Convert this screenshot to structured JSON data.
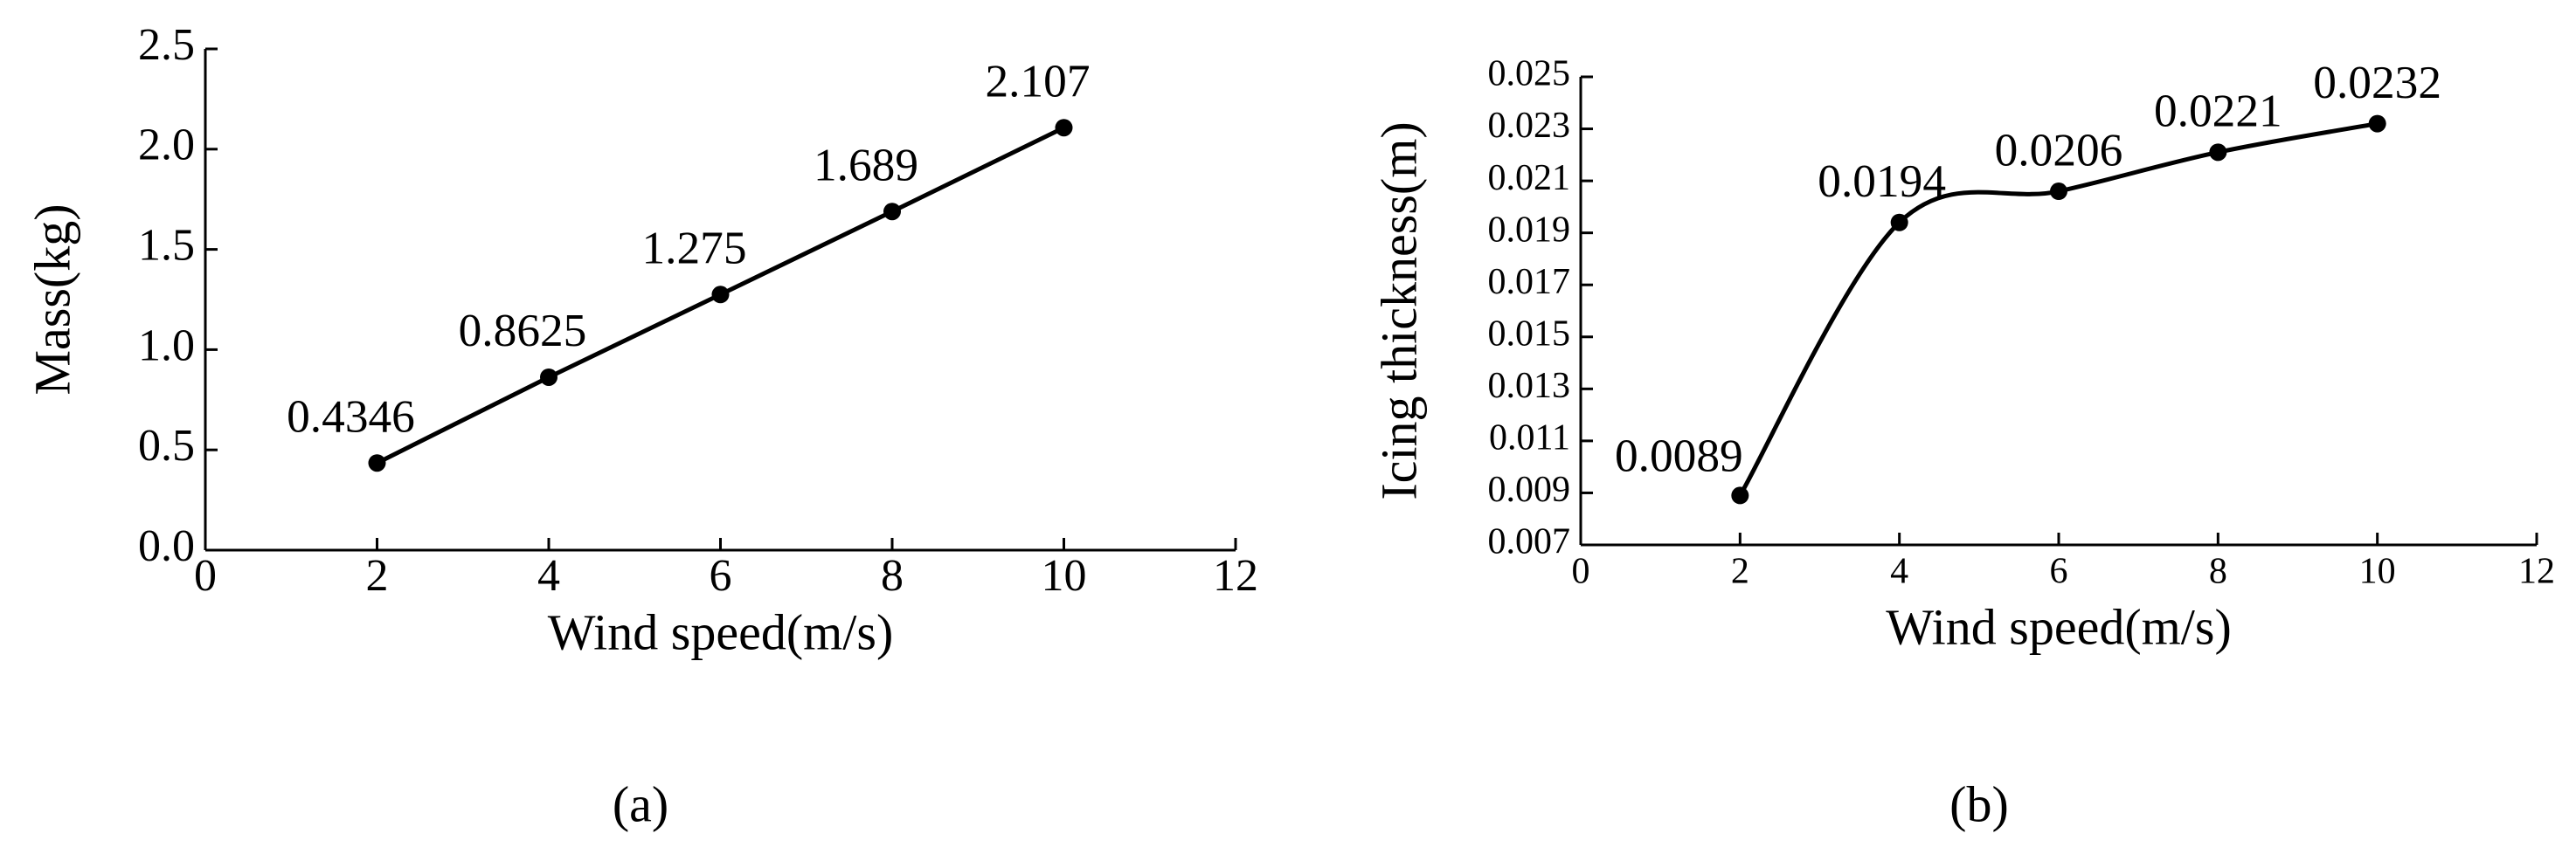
{
  "chart_data": [
    {
      "type": "line",
      "smooth": false,
      "caption": "(a)",
      "xlabel": "Wind speed(m/s)",
      "ylabel": "Mass(kg)",
      "x": [
        2,
        4,
        6,
        8,
        10
      ],
      "values": [
        0.4346,
        0.8625,
        1.275,
        1.689,
        2.107
      ],
      "color": "#000000",
      "xlim": [
        0,
        12
      ],
      "xticks": [
        0,
        2,
        4,
        6,
        8,
        10,
        12
      ],
      "ylim": [
        0,
        2.5
      ],
      "yticks": [
        {
          "value": 0,
          "label": "0.0"
        },
        0.5,
        {
          "value": 1,
          "label": "1.0"
        },
        1.5,
        {
          "value": 2,
          "label": "2.0"
        },
        2.5
      ]
    },
    {
      "type": "line",
      "smooth": true,
      "caption": "(b)",
      "xlabel": "Wind speed(m/s)",
      "ylabel": "Icing thickness(m)",
      "x": [
        2,
        4,
        6,
        8,
        10
      ],
      "values": [
        0.0089,
        0.0194,
        0.0206,
        0.0221,
        0.0232
      ],
      "color": "#000000",
      "xlim": [
        0,
        12
      ],
      "xticks": [
        0,
        2,
        4,
        6,
        8,
        10,
        12
      ],
      "ylim": [
        0.007,
        0.025
      ],
      "yticks": [
        0.007,
        0.009,
        0.011,
        0.013,
        0.015,
        0.017,
        0.019,
        0.021,
        0.023,
        0.025
      ]
    }
  ]
}
